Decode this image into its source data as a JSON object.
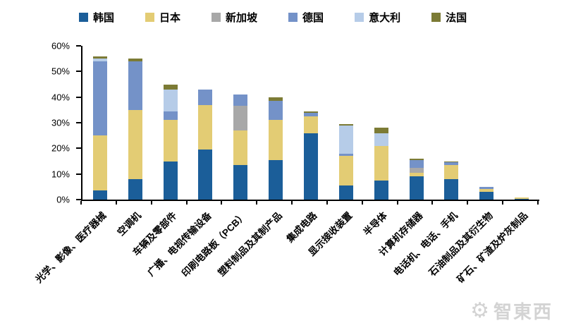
{
  "chart_data": {
    "type": "bar",
    "stacked": true,
    "categories": [
      "光学、影像、医疗器械",
      "空调机",
      "车辆及零部件",
      "广播、电视传输设备",
      "印刷电路板（PCB）",
      "塑料制品及其制产品",
      "集成电路",
      "显示接收装置",
      "半导体",
      "计算机存储器",
      "电话机、电话、手机",
      "石油制品及其衍生物",
      "矿石、矿渣及炉灰制品"
    ],
    "series": [
      {
        "name": "韩国",
        "color": "#1B5E99",
        "values": [
          3.5,
          8,
          15,
          19.5,
          13.5,
          15.5,
          26,
          5.5,
          7.5,
          9,
          8,
          3,
          0.4
        ]
      },
      {
        "name": "日本",
        "color": "#E3CC74",
        "values": [
          21.5,
          27,
          16,
          17.5,
          13.5,
          15.5,
          6.5,
          11.5,
          13.5,
          1.5,
          5.5,
          1.2,
          0.3
        ]
      },
      {
        "name": "新加坡",
        "color": "#A8A8A8",
        "values": [
          0,
          0,
          0,
          0,
          9.5,
          0,
          0,
          0,
          0,
          2,
          0,
          0,
          0
        ]
      },
      {
        "name": "德国",
        "color": "#7492C8",
        "values": [
          29,
          19,
          3.5,
          6,
          4.5,
          7.5,
          1.5,
          1,
          0,
          3,
          1,
          0.8,
          0
        ]
      },
      {
        "name": "意大利",
        "color": "#B6CCE8",
        "values": [
          1,
          0,
          8.5,
          0,
          0,
          0,
          0,
          11,
          5,
          0,
          0,
          0,
          0
        ]
      },
      {
        "name": "法国",
        "color": "#7C7B35",
        "values": [
          1,
          1,
          2,
          0,
          0,
          1.5,
          0.5,
          0.5,
          2,
          0.5,
          0.5,
          0,
          0
        ]
      }
    ],
    "ylim": [
      0,
      60
    ],
    "yticks": [
      "0%",
      "10%",
      "20%",
      "30%",
      "40%",
      "50%",
      "60%"
    ],
    "grid": false,
    "legend_position": "top",
    "title": "",
    "xlabel": "",
    "ylabel": ""
  },
  "watermark": {
    "text": "智東西",
    "gear_icon": "gear-icon"
  }
}
